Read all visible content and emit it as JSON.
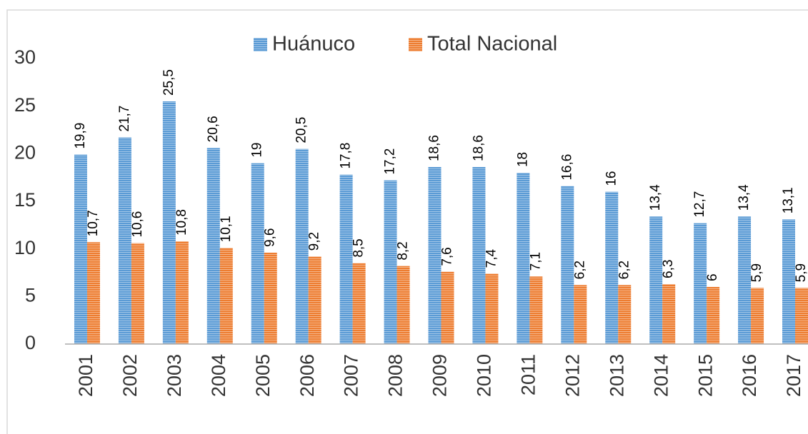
{
  "chart_data": {
    "type": "bar",
    "categories": [
      "2001",
      "2002",
      "2003",
      "2004",
      "2005",
      "2006",
      "2007",
      "2008",
      "2009",
      "2010",
      "2011",
      "2012",
      "2013",
      "2014",
      "2015",
      "2016",
      "2017"
    ],
    "series": [
      {
        "name": "Huánuco",
        "color": "#5b9bd5",
        "values": [
          19.9,
          21.7,
          25.5,
          20.6,
          19,
          20.5,
          17.8,
          17.2,
          18.6,
          18.6,
          18,
          16.6,
          16,
          13.4,
          12.7,
          13.4,
          13.1
        ],
        "value_labels": [
          "19,9",
          "21,7",
          "25,5",
          "20,6",
          "19",
          "20,5",
          "17,8",
          "17,2",
          "18,6",
          "18,6",
          "18",
          "16,6",
          "16",
          "13,4",
          "12,7",
          "13,4",
          "13,1"
        ]
      },
      {
        "name": "Total Nacional",
        "color": "#ed7d31",
        "values": [
          10.7,
          10.6,
          10.8,
          10.1,
          9.6,
          9.2,
          8.5,
          8.2,
          7.6,
          7.4,
          7.1,
          6.2,
          6.2,
          6.3,
          6,
          5.9,
          5.9
        ],
        "value_labels": [
          "10,7",
          "10,6",
          "10,8",
          "10,1",
          "9,6",
          "9,2",
          "8,5",
          "8,2",
          "7,6",
          "7,4",
          "7,1",
          "6,2",
          "6,2",
          "6,3",
          "6",
          "5,9",
          "5,9"
        ]
      }
    ],
    "ylim": [
      0,
      30
    ],
    "yticks": [
      0,
      5,
      10,
      15,
      20,
      25,
      30
    ],
    "grid": false,
    "legend": "top"
  }
}
